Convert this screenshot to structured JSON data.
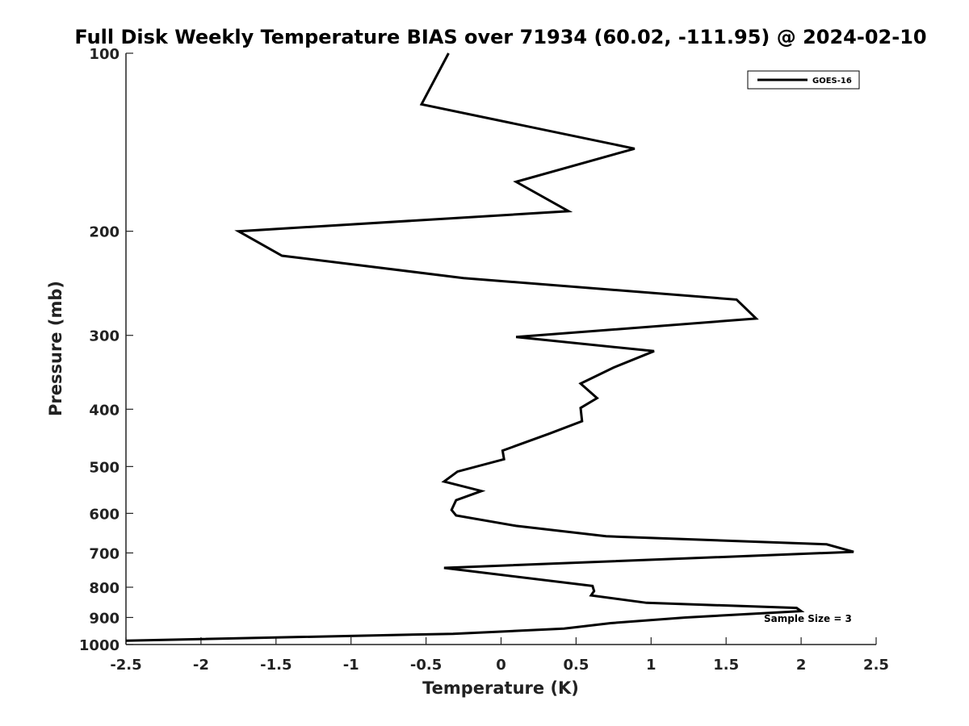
{
  "chart_data": {
    "type": "line",
    "title": "Full Disk Weekly Temperature BIAS over 71934 (60.02, -111.95) @ 2024-02-10",
    "xlabel": "Temperature (K)",
    "ylabel": "Pressure (mb)",
    "xlim": [
      -2.5,
      2.5
    ],
    "ylim": [
      100,
      1000
    ],
    "y_scale": "log",
    "y_reversed": true,
    "x_ticks": [
      "-2.5",
      "-2",
      "-1.5",
      "-1",
      "-0.5",
      "0",
      "0.5",
      "1",
      "1.5",
      "2",
      "2.5"
    ],
    "x_tick_values": [
      -2.5,
      -2,
      -1.5,
      -1,
      -0.5,
      0,
      0.5,
      1,
      1.5,
      2,
      2.5
    ],
    "y_ticks": [
      "100",
      "200",
      "300",
      "400",
      "500",
      "600",
      "700",
      "800",
      "900",
      "1000"
    ],
    "y_tick_values": [
      100,
      200,
      300,
      400,
      500,
      600,
      700,
      800,
      900,
      1000
    ],
    "grid": false,
    "legend_position": "top-right",
    "series": [
      {
        "name": "GOES-16",
        "color": "#000000",
        "points": [
          {
            "x": -0.35,
            "y": 100
          },
          {
            "x": -0.53,
            "y": 122
          },
          {
            "x": 0.89,
            "y": 145
          },
          {
            "x": 0.1,
            "y": 165
          },
          {
            "x": 0.45,
            "y": 185
          },
          {
            "x": -1.75,
            "y": 200
          },
          {
            "x": -1.46,
            "y": 220
          },
          {
            "x": -0.25,
            "y": 240
          },
          {
            "x": 1.57,
            "y": 261
          },
          {
            "x": 1.7,
            "y": 281
          },
          {
            "x": 0.1,
            "y": 302
          },
          {
            "x": 1.02,
            "y": 319
          },
          {
            "x": 0.75,
            "y": 340
          },
          {
            "x": 0.53,
            "y": 362
          },
          {
            "x": 0.64,
            "y": 383
          },
          {
            "x": 0.53,
            "y": 398
          },
          {
            "x": 0.54,
            "y": 419
          },
          {
            "x": 0.32,
            "y": 440
          },
          {
            "x": 0.01,
            "y": 470
          },
          {
            "x": 0.02,
            "y": 486
          },
          {
            "x": -0.29,
            "y": 510
          },
          {
            "x": -0.38,
            "y": 530
          },
          {
            "x": -0.13,
            "y": 550
          },
          {
            "x": -0.3,
            "y": 570
          },
          {
            "x": -0.33,
            "y": 592
          },
          {
            "x": -0.3,
            "y": 605
          },
          {
            "x": 0.1,
            "y": 630
          },
          {
            "x": 0.7,
            "y": 656
          },
          {
            "x": 2.17,
            "y": 677
          },
          {
            "x": 2.35,
            "y": 697
          },
          {
            "x": -0.38,
            "y": 742
          },
          {
            "x": 0.61,
            "y": 796
          },
          {
            "x": 0.62,
            "y": 812
          },
          {
            "x": 0.6,
            "y": 826
          },
          {
            "x": 0.97,
            "y": 850
          },
          {
            "x": 1.97,
            "y": 867
          },
          {
            "x": 2.0,
            "y": 878
          },
          {
            "x": 1.23,
            "y": 900
          },
          {
            "x": 0.73,
            "y": 920
          },
          {
            "x": 0.42,
            "y": 940
          },
          {
            "x": -0.32,
            "y": 959
          },
          {
            "x": -2.0,
            "y": 979
          },
          {
            "x": -2.5,
            "y": 985
          }
        ]
      }
    ],
    "annotation": "Sample Size = 3"
  }
}
